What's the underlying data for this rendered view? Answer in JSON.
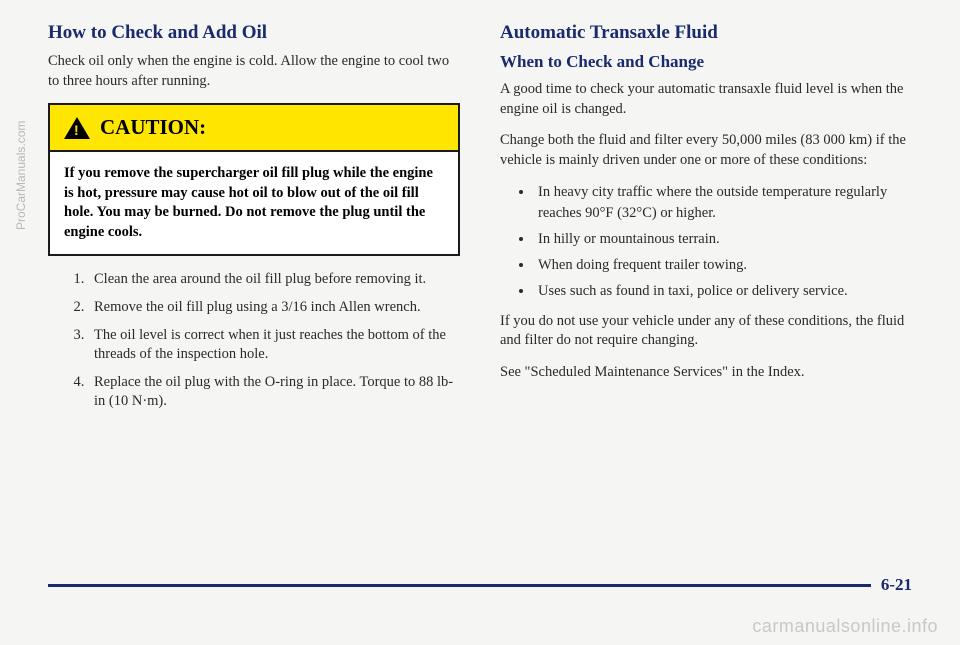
{
  "left": {
    "heading": "How to Check and Add Oil",
    "intro": "Check oil only when the engine is cold. Allow the engine to cool two to three hours after running.",
    "caution_label": "CAUTION:",
    "caution_body": "If you remove the supercharger oil fill plug while the engine is hot, pressure may cause hot oil to blow out of the oil fill hole. You may be burned. Do not remove the plug until the engine cools.",
    "caution_bg": "#ffe600",
    "steps": [
      "Clean the area around the oil fill plug before removing it.",
      "Remove the oil fill plug using a 3/16 inch Allen wrench.",
      "The oil level is correct when it just reaches the bottom of the threads of the inspection hole.",
      "Replace the oil plug with the O-ring in place. Torque to 88 lb-in (10 N·m)."
    ]
  },
  "right": {
    "heading": "Automatic Transaxle Fluid",
    "subheading": "When to Check and Change",
    "p1": "A good time to check your automatic transaxle fluid level is when the engine oil is changed.",
    "p2": "Change both the fluid and filter every 50,000 miles (83 000 km) if the vehicle is mainly driven under one or more of these conditions:",
    "bullets": [
      "In heavy city traffic where the outside temperature regularly reaches 90°F (32°C) or higher.",
      "In hilly or mountainous terrain.",
      "When doing frequent trailer towing.",
      "Uses such as found in taxi, police or delivery service."
    ],
    "p3": "If you do not use your vehicle under any of these conditions, the fluid and filter do not require changing.",
    "p4": "See \"Scheduled Maintenance Services\" in the Index."
  },
  "page_number": "6-21",
  "side_watermark": "ProCarManuals.com",
  "bottom_watermark": "carmanualsonline.info",
  "colors": {
    "heading": "#1a2a6c",
    "text": "#2a2a2a",
    "rule": "#1a2a6c"
  }
}
